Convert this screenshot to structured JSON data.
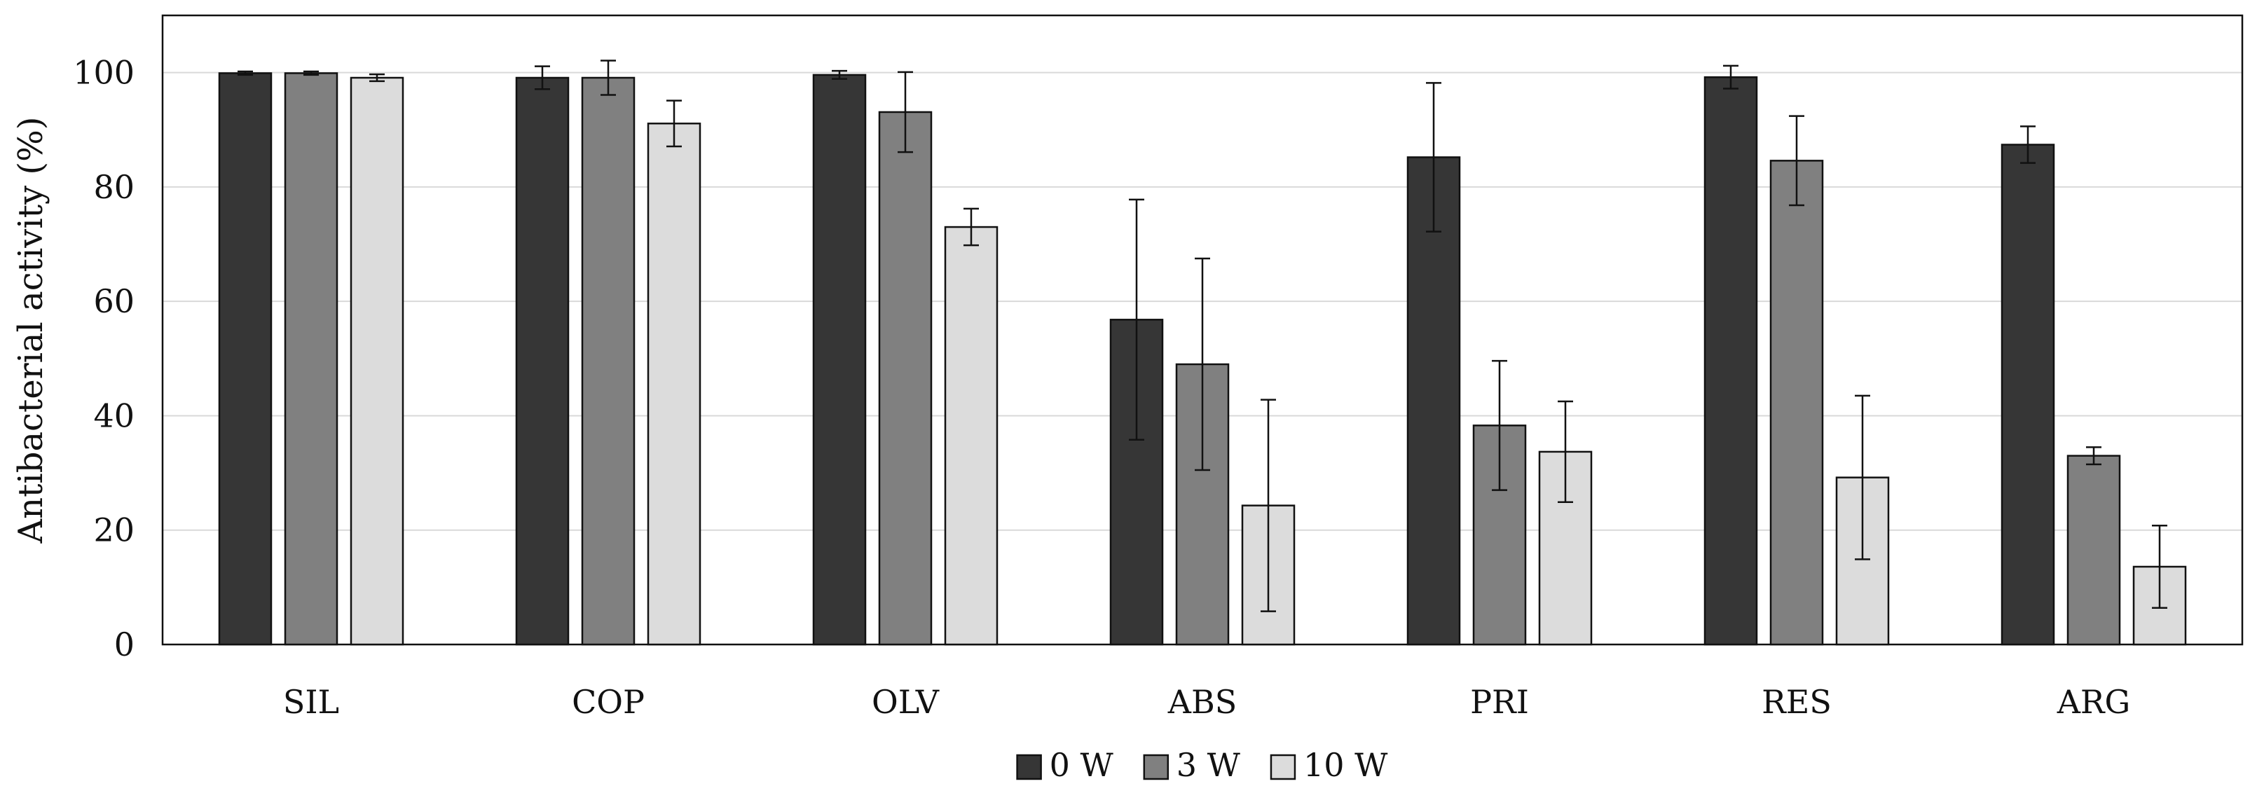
{
  "chart_data": {
    "type": "bar",
    "title": "",
    "xlabel": "",
    "ylabel": "Antibacterial activity  (%)",
    "ylim": [
      0,
      110
    ],
    "yticks": [
      0,
      20,
      40,
      60,
      80,
      100
    ],
    "grid": true,
    "legend_position": "bottom-center",
    "categories": [
      "SIL",
      "COP",
      "OLV",
      "ABS",
      "PRI",
      "RES",
      "ARG"
    ],
    "series": [
      {
        "name": "0 W",
        "color": "#363636",
        "values": [
          99.9,
          99.1,
          99.6,
          56.8,
          85.2,
          99.2,
          87.4
        ],
        "errors": [
          0.3,
          2.0,
          0.7,
          21.0,
          13.0,
          2.0,
          3.2
        ]
      },
      {
        "name": "3 W",
        "color": "#808080",
        "values": [
          99.9,
          99.1,
          93.1,
          49.0,
          38.3,
          84.6,
          33.0
        ],
        "errors": [
          0.3,
          3.0,
          7.0,
          18.5,
          11.3,
          7.8,
          1.5
        ]
      },
      {
        "name": "10 W",
        "color": "#dcdcdc",
        "values": [
          99.1,
          91.1,
          73.0,
          24.3,
          33.7,
          29.2,
          13.6
        ],
        "errors": [
          0.6,
          4.0,
          3.2,
          18.5,
          8.8,
          14.3,
          7.2
        ]
      }
    ]
  }
}
